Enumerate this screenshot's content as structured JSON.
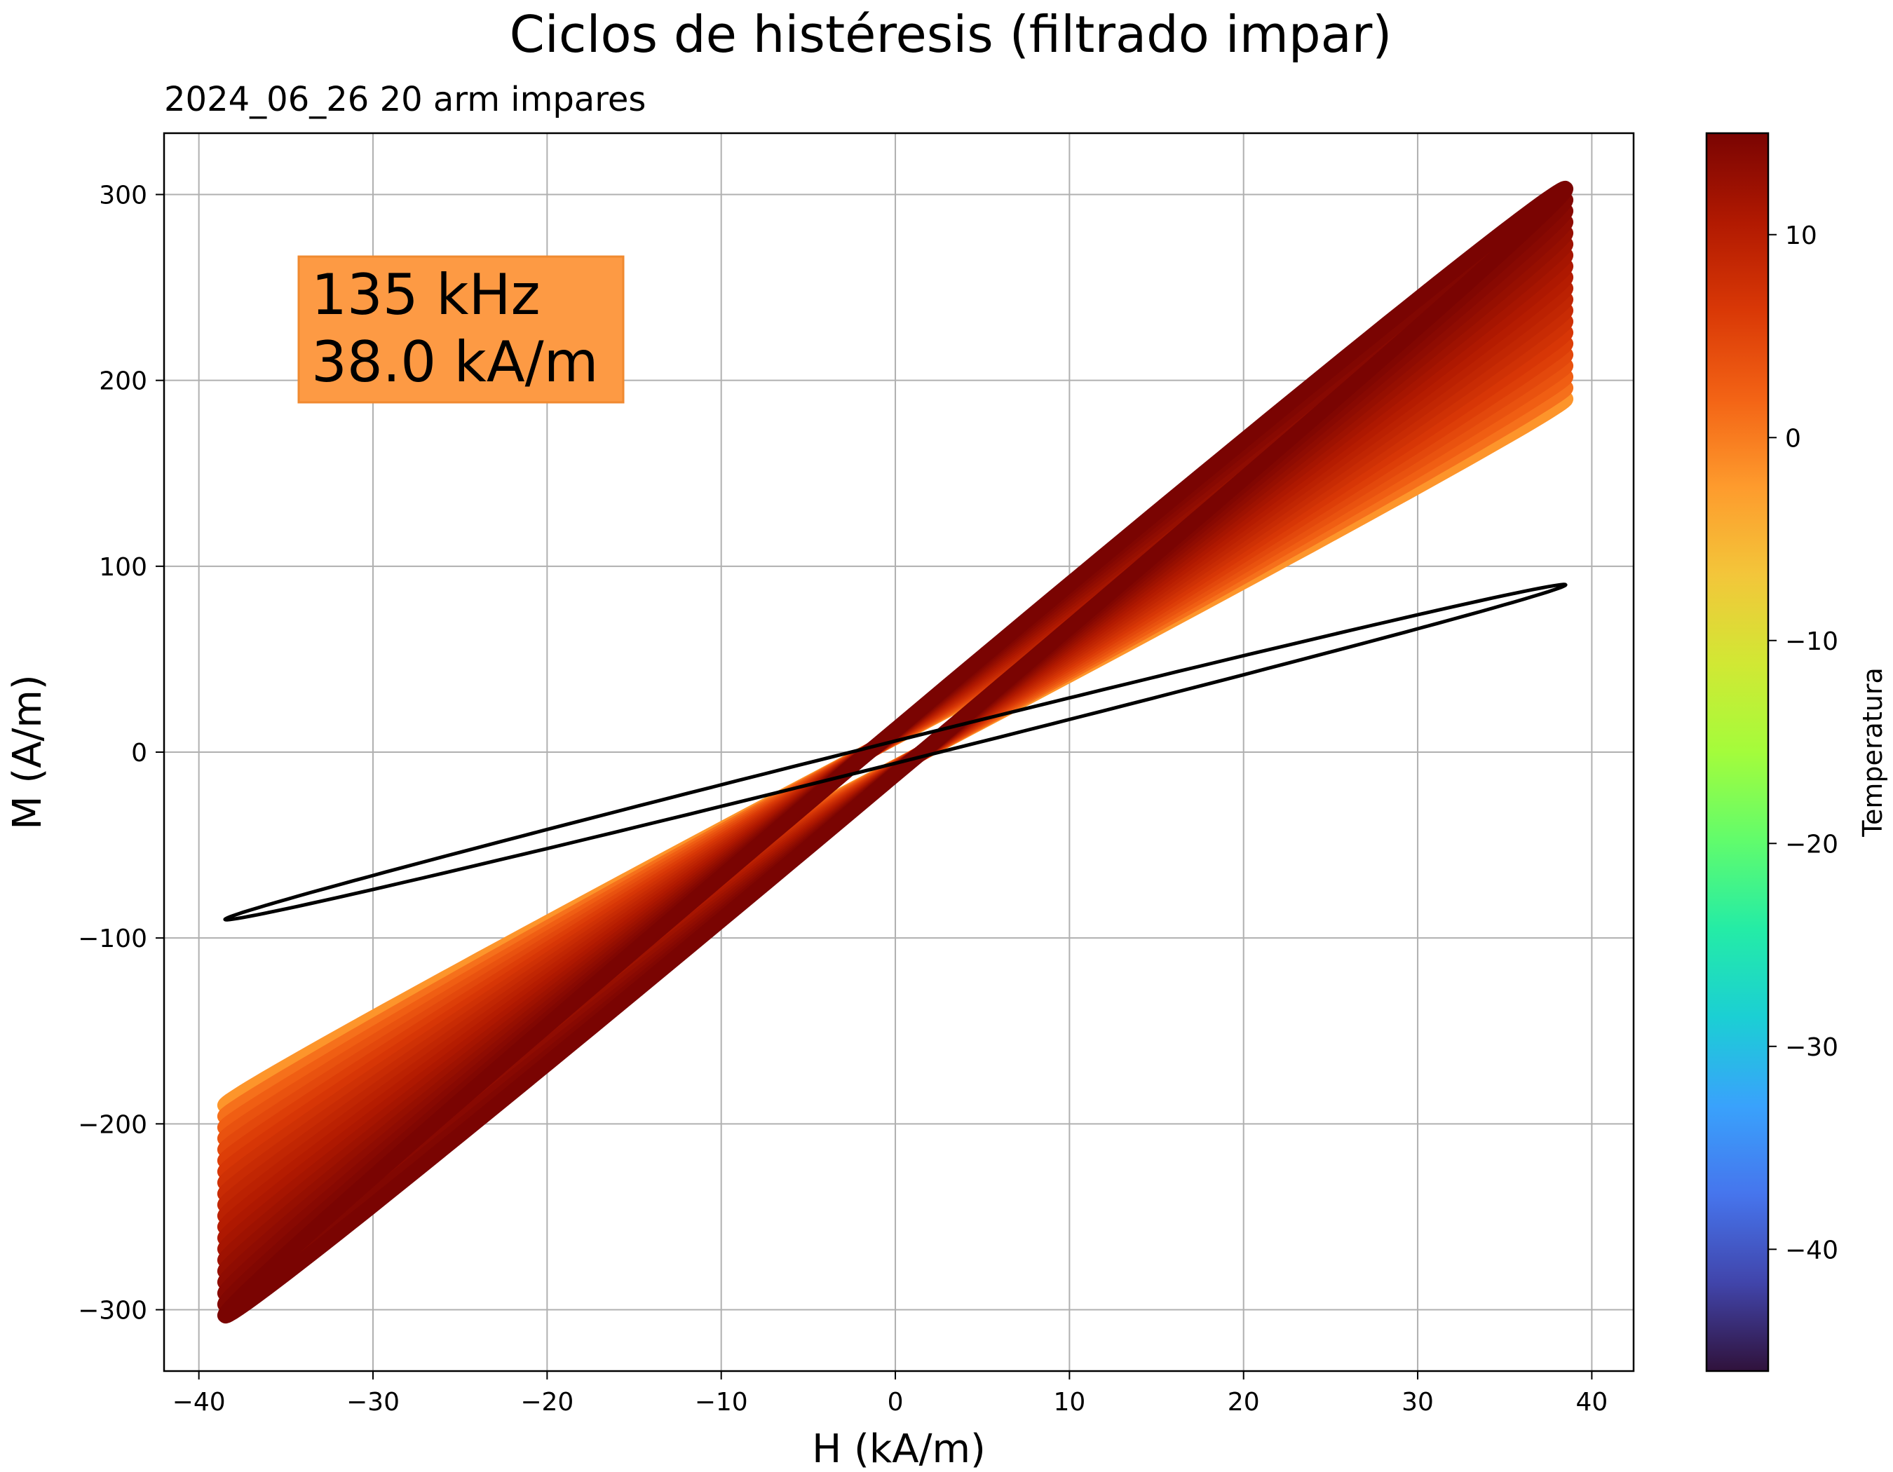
{
  "chart_data": {
    "type": "line",
    "title": "Ciclos de histéresis (filtrado impar)",
    "subtitle": "2024_06_26   20 arm impares",
    "xlabel": "H (kA/m)",
    "ylabel": "M (A/m)",
    "xlim": [
      -42,
      42.4
    ],
    "ylim": [
      -333,
      333
    ],
    "xticks": [
      -40,
      -30,
      -20,
      -10,
      0,
      10,
      20,
      30,
      40
    ],
    "yticks": [
      -300,
      -200,
      -100,
      0,
      100,
      200,
      300
    ],
    "xtick_labels": [
      "−40",
      "−30",
      "−20",
      "−10",
      "0",
      "10",
      "20",
      "30",
      "40"
    ],
    "ytick_labels": [
      "−300",
      "−200",
      "−100",
      "0",
      "100",
      "200",
      "300"
    ],
    "grid": true,
    "annotation": {
      "line1": "135 kHz",
      "line2": "38.0 kA/m",
      "box_color": "#fd9a44"
    },
    "colorbar": {
      "label": "Temperatura",
      "range": [
        -46,
        15
      ],
      "ticks": [
        10,
        0,
        -10,
        -20,
        -30,
        -40
      ],
      "tick_labels": [
        "10",
        "0",
        "−10",
        "−20",
        "−30",
        "−40"
      ],
      "colormap": [
        "#30123b",
        "#4145ab",
        "#4675ed",
        "#39a2fc",
        "#1bcfd4",
        "#24eca6",
        "#61fc6c",
        "#a4fc3b",
        "#d1e834",
        "#f3c63a",
        "#fe9b2d",
        "#f36315",
        "#d93806",
        "#b11901",
        "#7a0402"
      ]
    },
    "reference_cycle": {
      "name": "",
      "color": "#000000",
      "H_amplitude": 38.5,
      "M_amplitude": 90,
      "M_remanence": 6,
      "H_coercive": 1.6
    },
    "temperature_cycles": {
      "count": 20,
      "H_amplitude": 38.5,
      "M_amplitude_low_T": 190,
      "M_amplitude_high_T": 303,
      "M_remanence_low_T": 8,
      "M_remanence_high_T": 12,
      "T_range": [
        -2,
        15
      ]
    }
  }
}
